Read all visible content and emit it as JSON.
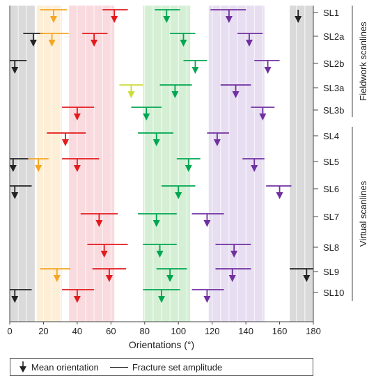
{
  "chart_data": {
    "type": "dumbbell",
    "xlabel": "Orientations (°)",
    "xlim": [
      0,
      180
    ],
    "xticks": [
      "0",
      "20",
      "40",
      "60",
      "80",
      "100",
      "120",
      "140",
      "160",
      "180"
    ],
    "scanlines": [
      "SL1",
      "SL2a",
      "SL2b",
      "SL3a",
      "SL3b",
      "SL4",
      "SL5",
      "SL6",
      "SL7",
      "SL8",
      "SL9",
      "SL10"
    ],
    "group_labels": [
      {
        "label": "Fieldwork scanlines",
        "members": [
          "SL1",
          "SL2a",
          "SL2b",
          "SL3a",
          "SL3b"
        ]
      },
      {
        "label": "Virtual scanlines",
        "members": [
          "SL4",
          "SL5",
          "SL6",
          "SL7",
          "SL8",
          "SL9",
          "SL10"
        ]
      }
    ],
    "bands": [
      {
        "x0": 0,
        "x1": 15,
        "color": "#d3d3d3"
      },
      {
        "x0": 16,
        "x1": 31,
        "color": "#fdebd0"
      },
      {
        "x0": 35,
        "x1": 62,
        "color": "#f8d4d8"
      },
      {
        "x0": 79,
        "x1": 107,
        "color": "#cdeccd"
      },
      {
        "x0": 118,
        "x1": 151,
        "color": "#e3d8ee"
      },
      {
        "x0": 166,
        "x1": 180,
        "color": "#d3d3d3"
      }
    ],
    "series": [
      {
        "color": "#222222",
        "sets": [
          {
            "scanline": "SL1",
            "mean": 171,
            "range": [
              null,
              null
            ]
          },
          {
            "scanline": "SL2a",
            "mean": 14,
            "range": [
              8,
              20
            ]
          },
          {
            "scanline": "SL2b",
            "mean": 3,
            "range": [
              0,
              10
            ]
          },
          {
            "scanline": "SL5",
            "mean": 2,
            "range": [
              0,
              11
            ]
          },
          {
            "scanline": "SL6",
            "mean": 3,
            "range": [
              0,
              13
            ]
          },
          {
            "scanline": "SL9",
            "mean": 176,
            "range": [
              166,
              180
            ]
          },
          {
            "scanline": "SL10",
            "mean": 3,
            "range": [
              0,
              13
            ]
          }
        ]
      },
      {
        "color": "#f5a623",
        "sets": [
          {
            "scanline": "SL1",
            "mean": 26,
            "range": [
              18,
              34
            ]
          },
          {
            "scanline": "SL2a",
            "mean": 25,
            "range": [
              18,
              35
            ]
          },
          {
            "scanline": "SL5",
            "mean": 17,
            "range": [
              11,
              23
            ]
          },
          {
            "scanline": "SL9",
            "mean": 28,
            "range": [
              18,
              36
            ]
          }
        ]
      },
      {
        "color": "#e31a1c",
        "sets": [
          {
            "scanline": "SL1",
            "mean": 62,
            "range": [
              55,
              70
            ]
          },
          {
            "scanline": "SL2a",
            "mean": 50,
            "range": [
              43,
              58
            ]
          },
          {
            "scanline": "SL3b",
            "mean": 40,
            "range": [
              31,
              50
            ]
          },
          {
            "scanline": "SL4",
            "mean": 33,
            "range": [
              22,
              45
            ]
          },
          {
            "scanline": "SL5",
            "mean": 40,
            "range": [
              31,
              53
            ]
          },
          {
            "scanline": "SL7",
            "mean": 53,
            "range": [
              42,
              64
            ]
          },
          {
            "scanline": "SL8",
            "mean": 56,
            "range": [
              46,
              70
            ]
          },
          {
            "scanline": "SL9",
            "mean": 59,
            "range": [
              49,
              69
            ]
          },
          {
            "scanline": "SL10",
            "mean": 40,
            "range": [
              31,
              50
            ]
          }
        ]
      },
      {
        "color": "#cddc39",
        "sets": [
          {
            "scanline": "SL3a",
            "mean": 72,
            "range": [
              65,
              79
            ]
          }
        ]
      },
      {
        "color": "#00a651",
        "sets": [
          {
            "scanline": "SL1",
            "mean": 93,
            "range": [
              86,
              101
            ]
          },
          {
            "scanline": "SL2a",
            "mean": 103,
            "range": [
              95,
              110
            ]
          },
          {
            "scanline": "SL2b",
            "mean": 110,
            "range": [
              103,
              117
            ]
          },
          {
            "scanline": "SL3a",
            "mean": 98,
            "range": [
              89,
              108
            ]
          },
          {
            "scanline": "SL3b",
            "mean": 81,
            "range": [
              72,
              90
            ]
          },
          {
            "scanline": "SL4",
            "mean": 87,
            "range": [
              76,
              97
            ]
          },
          {
            "scanline": "SL5",
            "mean": 106,
            "range": [
              99,
              113
            ]
          },
          {
            "scanline": "SL6",
            "mean": 100,
            "range": [
              90,
              110
            ]
          },
          {
            "scanline": "SL7",
            "mean": 87,
            "range": [
              76,
              99
            ]
          },
          {
            "scanline": "SL8",
            "mean": 89,
            "range": [
              79,
              99
            ]
          },
          {
            "scanline": "SL9",
            "mean": 95,
            "range": [
              87,
              105
            ]
          },
          {
            "scanline": "SL10",
            "mean": 90,
            "range": [
              79,
              101
            ]
          }
        ]
      },
      {
        "color": "#7030a0",
        "sets": [
          {
            "scanline": "SL1",
            "mean": 130,
            "range": [
              119,
              140
            ]
          },
          {
            "scanline": "SL2a",
            "mean": 142,
            "range": [
              135,
              150
            ]
          },
          {
            "scanline": "SL2b",
            "mean": 153,
            "range": [
              145,
              160
            ]
          },
          {
            "scanline": "SL3a",
            "mean": 134,
            "range": [
              125,
              143
            ]
          },
          {
            "scanline": "SL3b",
            "mean": 150,
            "range": [
              143,
              157
            ]
          },
          {
            "scanline": "SL4",
            "mean": 123,
            "range": [
              117,
              130
            ]
          },
          {
            "scanline": "SL5",
            "mean": 145,
            "range": [
              138,
              151
            ]
          },
          {
            "scanline": "SL6",
            "mean": 160,
            "range": [
              152,
              167
            ]
          },
          {
            "scanline": "SL7",
            "mean": 117,
            "range": [
              108,
              127
            ]
          },
          {
            "scanline": "SL8",
            "mean": 133,
            "range": [
              122,
              143
            ]
          },
          {
            "scanline": "SL9",
            "mean": 132,
            "range": [
              122,
              143
            ]
          },
          {
            "scanline": "SL10",
            "mean": 117,
            "range": [
              108,
              127
            ]
          }
        ]
      }
    ],
    "legend": {
      "mean_label": "Mean orientation",
      "amplitude_label": "Fracture set amplitude",
      "position": "bottom"
    }
  }
}
